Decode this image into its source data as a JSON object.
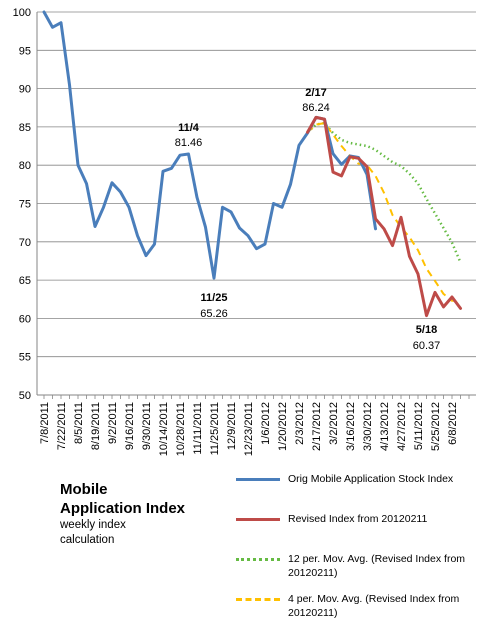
{
  "chart_data": {
    "type": "line",
    "ylim": [
      50,
      100
    ],
    "yticks": [
      50,
      55,
      60,
      65,
      70,
      75,
      80,
      85,
      90,
      95,
      100
    ],
    "x_tick_labels": [
      "7/8/2011",
      "7/22/2011",
      "8/5/2011",
      "8/19/2011",
      "9/2/2011",
      "9/16/2011",
      "9/30/2011",
      "10/14/2011",
      "10/28/2011",
      "11/11/2011",
      "11/25/2011",
      "12/9/2011",
      "12/23/2011",
      "1/6/2012",
      "1/20/2012",
      "2/3/2012",
      "2/17/2012",
      "3/2/2012",
      "3/16/2012",
      "3/30/2012",
      "4/13/2012",
      "4/27/2012",
      "5/11/2012",
      "5/25/2012",
      "6/8/2012"
    ],
    "x_points_weekly_start": "7/8/2011",
    "series": [
      {
        "name": "Orig Mobile Application Stock Index",
        "color": "#4a7ebb",
        "style": "solid",
        "start_week": 0,
        "values": [
          100.0,
          98.0,
          98.6,
          90.5,
          80.0,
          77.6,
          72.0,
          74.5,
          77.7,
          76.5,
          74.5,
          70.8,
          68.2,
          69.7,
          79.2,
          79.6,
          81.3,
          81.46,
          75.8,
          71.9,
          65.26,
          74.5,
          73.9,
          71.8,
          70.8,
          69.1,
          69.7,
          75.0,
          74.5,
          77.5,
          82.6,
          84.2,
          86.24,
          86.0,
          81.5,
          80.1,
          81.2,
          81.0,
          78.8,
          71.7
        ]
      },
      {
        "name": "Revised Index from 20120211",
        "color": "#be4b48",
        "style": "solid",
        "start_week": 31,
        "values": [
          84.3,
          86.24,
          86.0,
          79.1,
          78.6,
          81.1,
          80.9,
          79.8,
          73.0,
          71.7,
          69.5,
          73.2,
          68.1,
          65.8,
          60.37,
          63.4,
          61.5,
          62.8,
          61.3
        ]
      },
      {
        "name": "12 per. Mov. Avg. (Revised Index from 20120211)",
        "color": "#66bb44",
        "style": "dotted",
        "start_week": 31,
        "values": [
          84.3,
          85.3,
          85.5,
          84.2,
          83.3,
          82.9,
          82.7,
          82.5,
          82.0,
          81.2,
          80.4,
          79.9,
          78.9,
          77.6,
          75.6,
          73.7,
          71.8,
          69.9,
          67.3
        ]
      },
      {
        "name": "4 per. Mov. Avg. (Revised Index from 20120211)",
        "color": "#ffc000",
        "style": "dashed",
        "start_week": 31,
        "values": [
          84.3,
          85.3,
          85.5,
          84.0,
          82.5,
          81.2,
          80.2,
          80.0,
          78.6,
          76.4,
          73.5,
          71.9,
          70.6,
          68.9,
          66.5,
          64.9,
          63.2,
          62.3,
          62.3
        ]
      }
    ],
    "annotations": [
      {
        "date": "11/4",
        "value": "81.46",
        "week": 17,
        "position": "above"
      },
      {
        "date": "11/25",
        "value": "65.26",
        "week": 20,
        "position": "below"
      },
      {
        "date": "2/17",
        "value": "86.24",
        "week": 32,
        "position": "above"
      },
      {
        "date": "5/18",
        "value": "60.37",
        "week": 45,
        "position": "below"
      }
    ],
    "grid": "horizontal",
    "legend_position": "bottom-right"
  },
  "title_block": {
    "line1": "Mobile",
    "line2": "Application Index",
    "line3": "weekly index",
    "line4": "calculation"
  }
}
